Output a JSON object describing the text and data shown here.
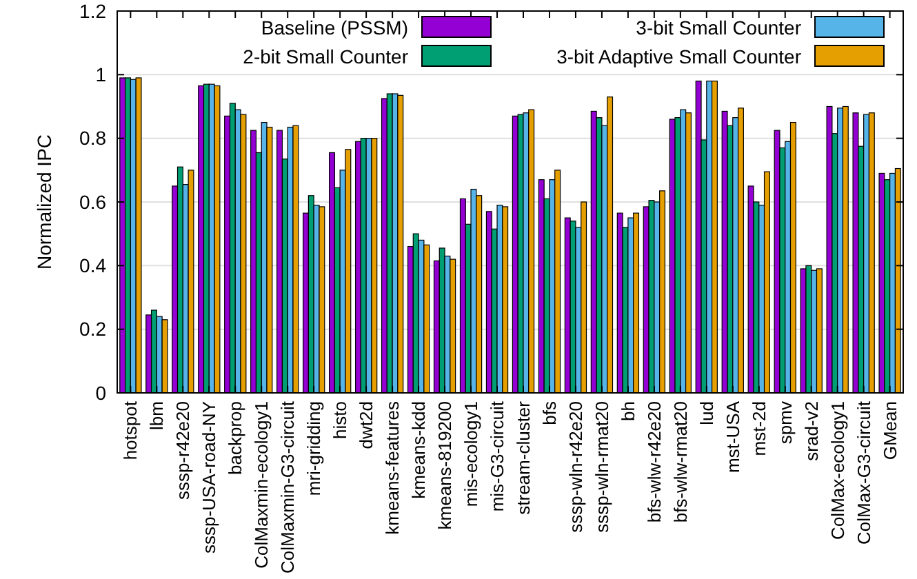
{
  "chart_data": {
    "type": "bar",
    "ylabel": "Normalized IPC",
    "categories": [
      "hotspot",
      "lbm",
      "sssp-r42e20",
      "sssp-USA-road-NY",
      "backprop",
      "ColMaxmin-ecology1",
      "ColMaxmin-G3-circuit",
      "mri-gridding",
      "histo",
      "dwt2d",
      "kmeans-features",
      "kmeans-kdd",
      "kmeans-819200",
      "mis-ecology1",
      "mis-G3-circuit",
      "stream-cluster",
      "bfs",
      "sssp-wln-r42e20",
      "sssp-wln-rmat20",
      "bh",
      "bfs-wlw-r42e20",
      "bfs-wlw-rmat20",
      "lud",
      "mst-USA",
      "mst-2d",
      "spmv",
      "srad-v2",
      "ColMax-ecology1",
      "ColMax-G3-circuit",
      "GMean"
    ],
    "series": [
      {
        "name": "Baseline (PSSM)",
        "color": "#9400d3",
        "values": [
          0.99,
          0.245,
          0.65,
          0.965,
          0.87,
          0.825,
          0.825,
          0.565,
          0.755,
          0.79,
          0.925,
          0.46,
          0.415,
          0.61,
          0.57,
          0.87,
          0.67,
          0.55,
          0.885,
          0.565,
          0.585,
          0.86,
          0.98,
          0.885,
          0.65,
          0.825,
          0.39,
          0.9,
          0.88,
          0.69
        ]
      },
      {
        "name": "2-bit Small Counter",
        "color": "#009e73",
        "values": [
          0.99,
          0.26,
          0.71,
          0.97,
          0.91,
          0.755,
          0.735,
          0.62,
          0.645,
          0.8,
          0.94,
          0.5,
          0.455,
          0.53,
          0.515,
          0.875,
          0.61,
          0.54,
          0.865,
          0.52,
          0.605,
          0.865,
          0.795,
          0.84,
          0.6,
          0.77,
          0.4,
          0.815,
          0.775,
          0.67
        ]
      },
      {
        "name": "3-bit Small Counter",
        "color": "#56b4e9",
        "values": [
          0.985,
          0.24,
          0.655,
          0.97,
          0.89,
          0.85,
          0.835,
          0.59,
          0.7,
          0.8,
          0.94,
          0.48,
          0.43,
          0.64,
          0.59,
          0.88,
          0.67,
          0.52,
          0.84,
          0.55,
          0.6,
          0.89,
          0.98,
          0.865,
          0.59,
          0.79,
          0.385,
          0.895,
          0.875,
          0.69
        ]
      },
      {
        "name": "3-bit Adaptive Small Counter",
        "color": "#e69f00",
        "values": [
          0.99,
          0.23,
          0.7,
          0.965,
          0.875,
          0.835,
          0.84,
          0.585,
          0.765,
          0.8,
          0.935,
          0.465,
          0.42,
          0.62,
          0.585,
          0.89,
          0.7,
          0.6,
          0.93,
          0.565,
          0.635,
          0.88,
          0.98,
          0.895,
          0.695,
          0.85,
          0.39,
          0.9,
          0.88,
          0.705
        ]
      }
    ],
    "ylim": [
      0,
      1.2
    ],
    "yticks": [
      0,
      0.2,
      0.4,
      0.6,
      0.8,
      1,
      1.2
    ],
    "grid": "y",
    "legend": "top"
  }
}
